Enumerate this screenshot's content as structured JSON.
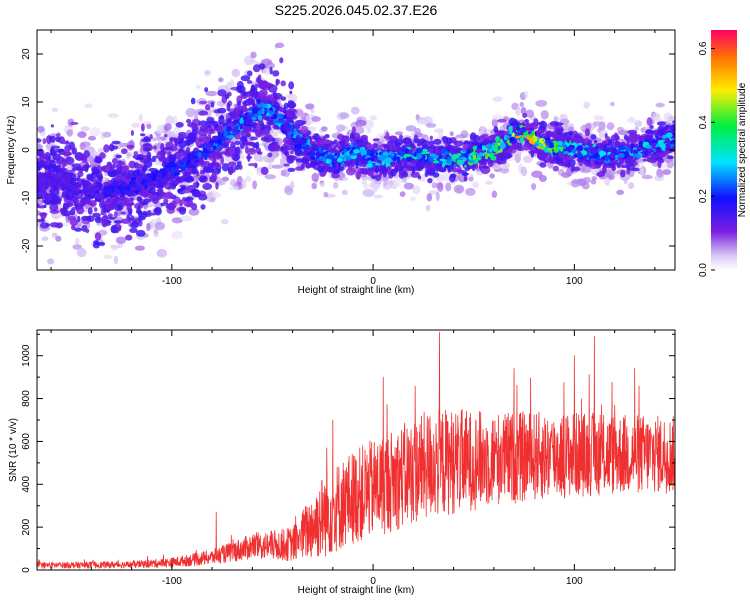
{
  "title": "S225.2026.045.02.37.E26",
  "colors": {
    "snr_line": "#f03030",
    "axis": "#000000"
  },
  "chart_data": [
    {
      "type": "heatmap",
      "xlabel": "Height of straight line (km)",
      "ylabel": "Frequency (Hz)",
      "xlim": [
        -167,
        150
      ],
      "ylim": [
        -25,
        25
      ],
      "xticks": [
        -100,
        0,
        100
      ],
      "xtick_labels": [
        "-100",
        "0",
        "100"
      ],
      "yticks": [
        -20,
        -10,
        0,
        10,
        20
      ],
      "ytick_labels": [
        "-20",
        "-10",
        "0",
        "10",
        "20"
      ],
      "colorbar": {
        "label": "Normalized spectral amplitude",
        "range": [
          0.0,
          0.65
        ],
        "ticks": [
          0.0,
          0.2,
          0.4,
          0.6
        ],
        "tick_labels": [
          "0.0",
          "0.2",
          "0.4",
          "0.6"
        ]
      },
      "ridge_center_hz": [
        {
          "x": -160,
          "f": -6
        },
        {
          "x": -140,
          "f": -9
        },
        {
          "x": -120,
          "f": -8
        },
        {
          "x": -100,
          "f": -4
        },
        {
          "x": -85,
          "f": -1
        },
        {
          "x": -70,
          "f": 4
        },
        {
          "x": -55,
          "f": 9
        },
        {
          "x": -45,
          "f": 6
        },
        {
          "x": -35,
          "f": 1
        },
        {
          "x": -20,
          "f": -2
        },
        {
          "x": -10,
          "f": 0
        },
        {
          "x": 0,
          "f": -2
        },
        {
          "x": 20,
          "f": -1
        },
        {
          "x": 40,
          "f": -2
        },
        {
          "x": 60,
          "f": 0
        },
        {
          "x": 75,
          "f": 4
        },
        {
          "x": 85,
          "f": 1
        },
        {
          "x": 100,
          "f": 0
        },
        {
          "x": 120,
          "f": -1
        },
        {
          "x": 140,
          "f": 1
        },
        {
          "x": 150,
          "f": 2
        }
      ],
      "peak_amplitude_at_km": [
        {
          "x": -160,
          "a": 0.15
        },
        {
          "x": -120,
          "a": 0.2
        },
        {
          "x": -100,
          "a": 0.22
        },
        {
          "x": -55,
          "a": 0.3
        },
        {
          "x": -40,
          "a": 0.3
        },
        {
          "x": 0,
          "a": 0.32
        },
        {
          "x": 40,
          "a": 0.42
        },
        {
          "x": 70,
          "a": 0.55
        },
        {
          "x": 80,
          "a": 0.6
        },
        {
          "x": 100,
          "a": 0.35
        },
        {
          "x": 130,
          "a": 0.32
        },
        {
          "x": 150,
          "a": 0.35
        }
      ]
    },
    {
      "type": "line",
      "xlabel": "Height of straight line (km)",
      "ylabel": "SNR (10 * v/v)",
      "xlim": [
        -167,
        150
      ],
      "ylim": [
        0,
        1120
      ],
      "xticks": [
        -100,
        0,
        100
      ],
      "xtick_labels": [
        "-100",
        "0",
        "100"
      ],
      "yticks": [
        0,
        200,
        400,
        600,
        800,
        1000
      ],
      "ytick_labels": [
        "0",
        "200",
        "400",
        "600",
        "800",
        "1000"
      ],
      "envelope": [
        {
          "x": -167,
          "mean": 22,
          "spread": 14
        },
        {
          "x": -120,
          "mean": 25,
          "spread": 16
        },
        {
          "x": -100,
          "mean": 35,
          "spread": 22
        },
        {
          "x": -80,
          "mean": 60,
          "spread": 35
        },
        {
          "x": -60,
          "mean": 110,
          "spread": 60
        },
        {
          "x": -40,
          "mean": 120,
          "spread": 80
        },
        {
          "x": -25,
          "mean": 250,
          "spread": 200
        },
        {
          "x": -10,
          "mean": 340,
          "spread": 220
        },
        {
          "x": 10,
          "mean": 420,
          "spread": 240
        },
        {
          "x": 30,
          "mean": 500,
          "spread": 260
        },
        {
          "x": 60,
          "mean": 520,
          "spread": 220
        },
        {
          "x": 100,
          "mean": 540,
          "spread": 200
        },
        {
          "x": 150,
          "mean": 540,
          "spread": 180
        }
      ],
      "notable_peaks": [
        {
          "x": -78,
          "y": 270
        },
        {
          "x": -23,
          "y": 570
        },
        {
          "x": -20,
          "y": 700
        },
        {
          "x": 5,
          "y": 900
        },
        {
          "x": 33,
          "y": 1110
        },
        {
          "x": 70,
          "y": 940
        },
        {
          "x": 100,
          "y": 1000
        },
        {
          "x": 110,
          "y": 1090
        },
        {
          "x": 130,
          "y": 940
        }
      ]
    }
  ]
}
